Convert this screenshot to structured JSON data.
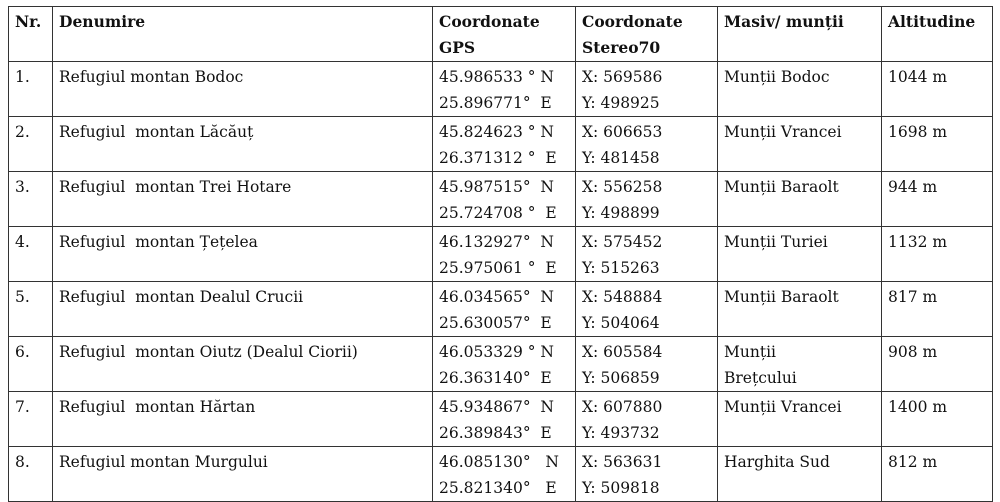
{
  "headers": [
    "Nr.",
    "Denumire",
    "Coordonate GPS",
    "Coordonate Stereo70",
    "Masiv/ munții",
    "Altitudine"
  ],
  "rows": [
    {
      "nr": "1.",
      "name": "Refugiul montan Bodoc",
      "gps_n": "45.986533 ° N",
      "gps_e": "25.896771°  E",
      "x": "X: 569586",
      "y": "Y: 498925",
      "massif": "Munții Bodoc",
      "altitude": "1044 m"
    },
    {
      "nr": "2.",
      "name": "Refugiul  montan Lăcăuț",
      "gps_n": "45.824623 ° N",
      "gps_e": "26.371312 °  E",
      "x": "X: 606653",
      "y": "Y: 481458",
      "massif": "Munții Vrancei",
      "altitude": "1698 m"
    },
    {
      "nr": "3.",
      "name": "Refugiul  montan Trei Hotare",
      "gps_n": "45.987515°  N",
      "gps_e": "25.724708 °  E",
      "x": "X: 556258",
      "y": "Y: 498899",
      "massif": "Munții Baraolt",
      "altitude": "944 m"
    },
    {
      "nr": "4.",
      "name": "Refugiul  montan Țețelea",
      "gps_n": "46.132927°  N",
      "gps_e": "25.975061 °  E",
      "x": "X: 575452",
      "y": "Y: 515263",
      "massif": "Munții Turiei",
      "altitude": "1132 m"
    },
    {
      "nr": "5.",
      "name": "Refugiul  montan Dealul Crucii",
      "gps_n": "46.034565°  N",
      "gps_e": "25.630057°  E",
      "x": "X: 548884",
      "y": "Y: 504064",
      "massif": "Munții Baraolt",
      "altitude": "817 m"
    },
    {
      "nr": "6.",
      "name": "Refugiul  montan Oiutz (Dealul Ciorii)",
      "gps_n": "46.053329 ° N",
      "gps_e": "26.363140°  E",
      "x": "X: 605584",
      "y": "Y: 506859",
      "massif": "Munții\nBrețcului",
      "altitude": "908 m"
    },
    {
      "nr": "7.",
      "name": "Refugiul  montan Hărtan",
      "gps_n": "45.934867°  N",
      "gps_e": "26.389843°  E",
      "x": "X: 607880",
      "y": "Y: 493732",
      "massif": "Munții Vrancei",
      "altitude": "1400 m"
    },
    {
      "nr": "8.",
      "name": "Refugiul montan Murgului",
      "gps_n": "46.085130°   N",
      "gps_e": "25.821340°   E",
      "x": "X: 563631",
      "y": "Y: 509818",
      "massif": "Harghita Sud",
      "altitude": "812 m"
    }
  ]
}
